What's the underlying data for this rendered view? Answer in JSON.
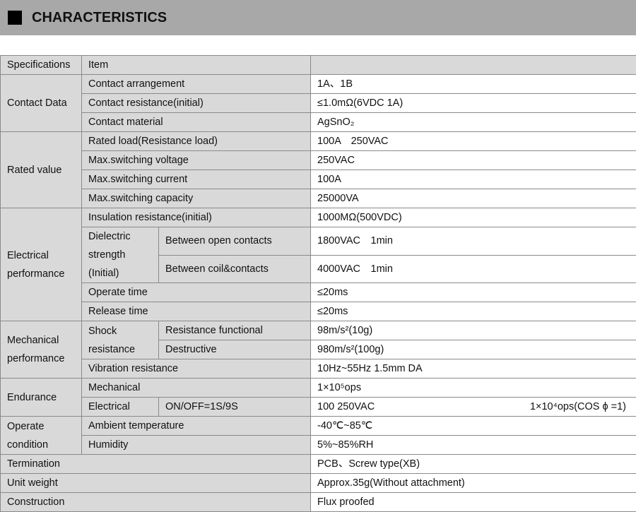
{
  "title": "CHARACTERISTICS",
  "header": {
    "spec": "Specifications",
    "item": "Item",
    "value": ""
  },
  "contact": {
    "group": "Contact Data",
    "rows": [
      [
        "Contact arrangement",
        "1A、1B"
      ],
      [
        "Contact resistance(initial)",
        "≤1.0mΩ(6VDC 1A)"
      ],
      [
        "Contact material",
        "AgSnO₂"
      ]
    ]
  },
  "rated": {
    "group": "Rated value",
    "rows": [
      [
        "Rated load(Resistance load)",
        "100A　250VAC"
      ],
      [
        "Max.switching voltage",
        "250VAC"
      ],
      [
        "Max.switching current",
        "100A"
      ],
      [
        "Max.switching capacity",
        "25000VA"
      ]
    ]
  },
  "electrical": {
    "group": "Electrical performance",
    "insulation": [
      "Insulation resistance(initial)",
      "1000MΩ(500VDC)"
    ],
    "dielectric": "Dielectric strength (Initial)",
    "open": [
      "Between open contacts",
      "1800VAC　1min"
    ],
    "coil": [
      "Between coil&contacts",
      "4000VAC　1min"
    ],
    "operate": [
      "Operate time",
      "≤20ms"
    ],
    "release": [
      "Release time",
      "≤20ms"
    ]
  },
  "mechanical": {
    "group": "Mechanical performance",
    "shock": "Shock resistance",
    "functional": [
      "Resistance functional",
      "98m/s²(10g)"
    ],
    "destructive": [
      "Destructive",
      "980m/s²(100g)"
    ],
    "vibration": [
      "Vibration resistance",
      "10Hz~55Hz 1.5mm DA"
    ]
  },
  "endurance": {
    "group": "Endurance",
    "mechanical": [
      "Mechanical",
      "1×10⁵ops"
    ],
    "electrical": [
      "Electrical",
      "ON/OFF=1S/9S",
      "100 250VAC",
      "1×10⁴ops(COS ϕ =1)"
    ]
  },
  "operate": {
    "group": "Operate condition",
    "ambient": [
      "Ambient temperature",
      "-40℃~85℃"
    ],
    "humidity": [
      "Humidity",
      "5%~85%RH"
    ]
  },
  "termination": [
    "Termination",
    "PCB、Screw type(XB)"
  ],
  "weight": [
    "Unit weight",
    "Approx.35g(Without attachment)"
  ],
  "construction": [
    "Construction",
    "Flux proofed"
  ]
}
